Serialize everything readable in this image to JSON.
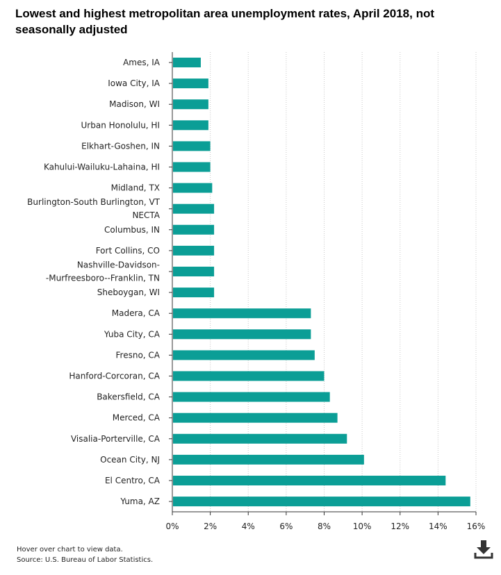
{
  "chart_data": {
    "type": "bar",
    "orientation": "horizontal",
    "title": "Lowest and highest metropolitan area unemployment rates, April 2018, not seasonally adjusted",
    "xlabel": "",
    "ylabel": "",
    "xlim": [
      0,
      16
    ],
    "x_ticks": [
      0,
      2,
      4,
      6,
      8,
      10,
      12,
      14,
      16
    ],
    "x_tick_labels": [
      "0%",
      "2%",
      "4%",
      "6%",
      "8%",
      "10%",
      "12%",
      "14%",
      "16%"
    ],
    "grid": "vertical dotted",
    "bar_color": "#0b9e96",
    "categories": [
      "Ames, IA",
      "Iowa City, IA",
      "Madison, WI",
      "Urban Honolulu, HI",
      "Elkhart-Goshen, IN",
      "Kahului-Wailuku-Lahaina, HI",
      "Midland, TX",
      "Burlington-South Burlington, VT NECTA",
      "Columbus, IN",
      "Fort Collins, CO",
      "Nashville-Davidson--Murfreesboro--Franklin, TN",
      "Sheboygan, WI",
      "Madera, CA",
      "Yuba City, CA",
      "Fresno, CA",
      "Hanford-Corcoran, CA",
      "Bakersfield, CA",
      "Merced, CA",
      "Visalia-Porterville, CA",
      "Ocean City, NJ",
      "El Centro, CA",
      "Yuma, AZ"
    ],
    "category_display_lines": [
      [
        "Ames, IA"
      ],
      [
        "Iowa City, IA"
      ],
      [
        "Madison, WI"
      ],
      [
        "Urban Honolulu, HI"
      ],
      [
        "Elkhart-Goshen, IN"
      ],
      [
        "Kahului-Wailuku-Lahaina, HI"
      ],
      [
        "Midland, TX"
      ],
      [
        "Burlington-South Burlington, VT",
        "NECTA"
      ],
      [
        "Columbus, IN"
      ],
      [
        "Fort Collins, CO"
      ],
      [
        "Nashville-Davidson-",
        "-Murfreesboro--Franklin, TN"
      ],
      [
        "Sheboygan, WI"
      ],
      [
        "Madera, CA"
      ],
      [
        "Yuba City, CA"
      ],
      [
        "Fresno, CA"
      ],
      [
        "Hanford-Corcoran, CA"
      ],
      [
        "Bakersfield, CA"
      ],
      [
        "Merced, CA"
      ],
      [
        "Visalia-Porterville, CA"
      ],
      [
        "Ocean City, NJ"
      ],
      [
        "El Centro, CA"
      ],
      [
        "Yuma, AZ"
      ]
    ],
    "values": [
      1.5,
      1.9,
      1.9,
      1.9,
      2.0,
      2.0,
      2.1,
      2.2,
      2.2,
      2.2,
      2.2,
      2.2,
      7.3,
      7.3,
      7.5,
      8.0,
      8.3,
      8.7,
      9.2,
      10.1,
      14.4,
      15.7
    ]
  },
  "footer": {
    "hover_note": "Hover over chart to view data.",
    "source": "Source: U.S. Bureau of Labor Statistics."
  },
  "icons": {
    "download": "download-icon"
  }
}
